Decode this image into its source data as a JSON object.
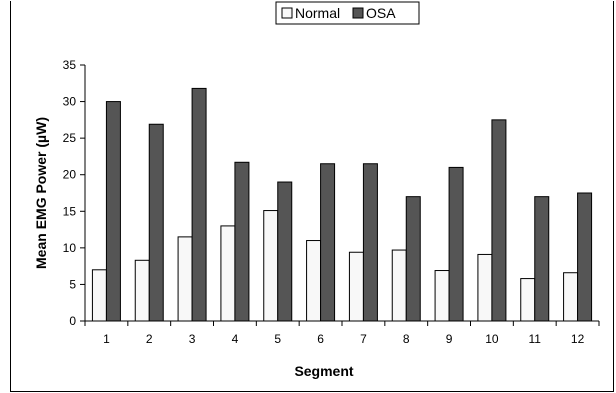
{
  "chart_data": {
    "type": "bar",
    "title": "",
    "xlabel": "Segment",
    "ylabel": "Mean EMG Power (µW)",
    "categories": [
      "1",
      "2",
      "3",
      "4",
      "5",
      "6",
      "7",
      "8",
      "9",
      "10",
      "11",
      "12"
    ],
    "series": [
      {
        "name": "Normal",
        "color": "#f8f8f8",
        "values": [
          7.0,
          8.3,
          11.5,
          13.0,
          15.1,
          11.0,
          9.4,
          9.7,
          6.9,
          9.1,
          5.8,
          6.6
        ]
      },
      {
        "name": "OSA",
        "color": "#555555",
        "values": [
          30.0,
          26.9,
          31.8,
          21.7,
          19.0,
          21.5,
          21.5,
          17.0,
          21.0,
          27.5,
          17.0,
          17.5
        ]
      }
    ],
    "ylim": [
      0,
      35
    ],
    "yticks": [
      "0",
      "5",
      "10",
      "15",
      "20",
      "25",
      "30",
      "35"
    ],
    "grid": false,
    "legend": "top-center"
  }
}
